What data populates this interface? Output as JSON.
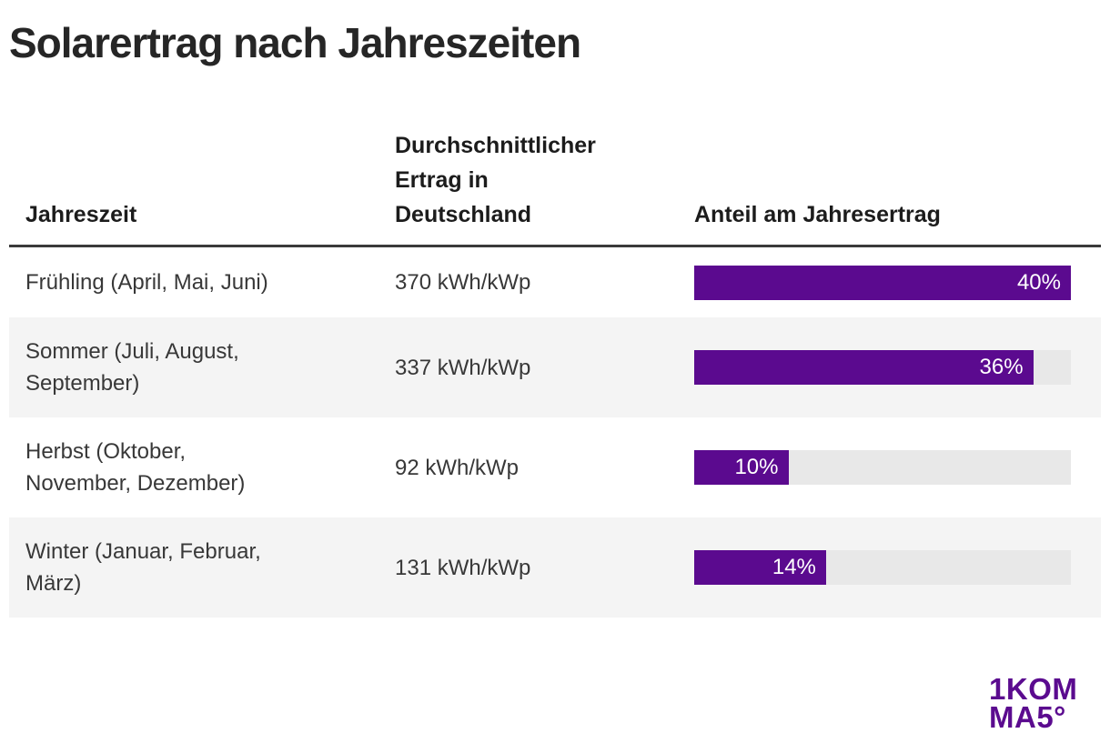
{
  "title": "Solarertrag nach Jahreszeiten",
  "header": {
    "col_season": "Jahreszeit",
    "col_yield": "Durchschnittlicher\nErtrag in\nDeutschland",
    "col_share": "Anteil am Jahresertrag"
  },
  "rows": [
    {
      "season": "Frühling (April, Mai, Juni)",
      "yield": "370 kWh/kWp",
      "share_label": "40%"
    },
    {
      "season": "Sommer (Juli, August,\nSeptember)",
      "yield": "337 kWh/kWp",
      "share_label": "36%"
    },
    {
      "season": "Herbst (Oktober,\nNovember, Dezember)",
      "yield": "92 kWh/kWp",
      "share_label": "10%"
    },
    {
      "season": "Winter (Januar, Februar,\nMärz)",
      "yield": "131 kWh/kWp",
      "share_label": "14%"
    }
  ],
  "chart_data": {
    "type": "bar",
    "orientation": "horizontal",
    "title": "Solarertrag nach Jahreszeiten",
    "categories": [
      "Frühling (April, Mai, Juni)",
      "Sommer (Juli, August, September)",
      "Herbst (Oktober, November, Dezember)",
      "Winter (Januar, Februar, März)"
    ],
    "series": [
      {
        "name": "Durchschnittlicher Ertrag in Deutschland (kWh/kWp)",
        "values": [
          370,
          337,
          92,
          131
        ]
      },
      {
        "name": "Anteil am Jahresertrag (%)",
        "values": [
          40,
          36,
          10,
          14
        ]
      }
    ],
    "scale_max": 40,
    "bar_color": "#5b0a8f",
    "track_color": "#e8e8e8",
    "legend_position": "none",
    "grid": false
  },
  "colors": {
    "accent_purple": "#5b0a8f",
    "row_alt_background": "#f4f4f4",
    "bar_track": "#e8e8e8",
    "header_rule": "#3a3a3a",
    "title_text": "#262626",
    "body_text": "#383838"
  },
  "logo": {
    "line1_light": "1",
    "line1_heavy": "KOM",
    "line2_heavy": "MA",
    "line2_light": "5°"
  }
}
